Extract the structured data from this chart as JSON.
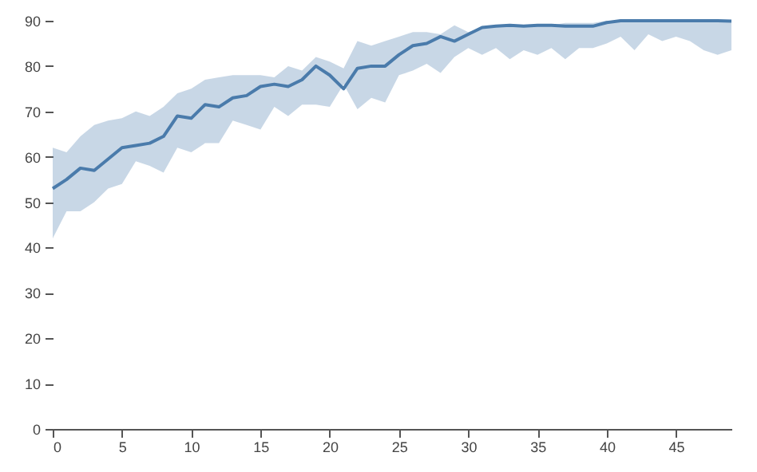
{
  "chart_data": {
    "type": "line",
    "x": [
      0,
      1,
      2,
      3,
      4,
      5,
      6,
      7,
      8,
      9,
      10,
      11,
      12,
      13,
      14,
      15,
      16,
      17,
      18,
      19,
      20,
      21,
      22,
      23,
      24,
      25,
      26,
      27,
      28,
      29,
      30,
      31,
      32,
      33,
      34,
      35,
      36,
      37,
      38,
      39,
      40,
      41,
      42,
      43,
      44,
      45,
      46,
      47,
      48,
      49
    ],
    "series": [
      {
        "color": "#4a7bab",
        "values": [
          53,
          55,
          57.5,
          57,
          59.5,
          62,
          62.5,
          63,
          64.5,
          69,
          68.5,
          71.5,
          71,
          73,
          73.5,
          75.5,
          76,
          75.5,
          77,
          80,
          78,
          75,
          79.5,
          80,
          80,
          82.5,
          84.5,
          85,
          86.5,
          85.5,
          87,
          88.5,
          88.8,
          89,
          88.8,
          89,
          89,
          88.8,
          88.8,
          88.8,
          89.6,
          90,
          90,
          90,
          90,
          90,
          90,
          90,
          90,
          89.9
        ],
        "upper": [
          62,
          61,
          64.5,
          67,
          68,
          68.5,
          70,
          69,
          71,
          74,
          75,
          77,
          77.5,
          78,
          78,
          78,
          77.5,
          80,
          79,
          82,
          81,
          79.5,
          85.5,
          84.5,
          85.5,
          86.5,
          87.5,
          87.5,
          87,
          89,
          87.5,
          88.5,
          89,
          89,
          89,
          89,
          89,
          89.5,
          89.5,
          89.5,
          90,
          90,
          90,
          90,
          90,
          90,
          90,
          90,
          90,
          90
        ],
        "lower": [
          42,
          48,
          48,
          50,
          53,
          54,
          59,
          58,
          56.5,
          62,
          61,
          63,
          63,
          68,
          67,
          66,
          71,
          69,
          71.5,
          71.5,
          71,
          76,
          70.5,
          73,
          72,
          78,
          79,
          80.5,
          78.5,
          82,
          84,
          82.5,
          84,
          81.5,
          83.5,
          82.5,
          84,
          81.5,
          84,
          84,
          85,
          86.5,
          83.5,
          87,
          85.5,
          86.5,
          85.5,
          83.5,
          82.5,
          83.5
        ]
      }
    ],
    "xlim": [
      0,
      49
    ],
    "xticks": [
      0,
      5,
      10,
      15,
      20,
      25,
      30,
      35,
      40,
      45
    ],
    "ylim": [
      0,
      90
    ],
    "yticks": [
      0,
      10,
      20,
      30,
      40,
      50,
      60,
      70,
      80,
      90
    ],
    "grid": false,
    "marker": "none",
    "line_style": "solid"
  }
}
